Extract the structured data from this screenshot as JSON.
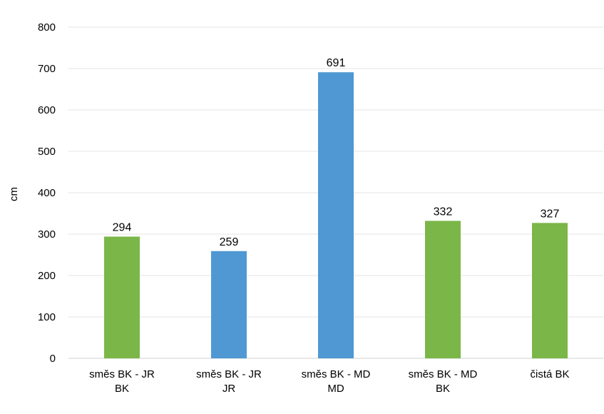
{
  "chart_data": {
    "type": "bar",
    "title": "",
    "xlabel": "",
    "ylabel": "cm",
    "ylim": [
      0,
      800
    ],
    "yticks": [
      0,
      100,
      200,
      300,
      400,
      500,
      600,
      700,
      800
    ],
    "grid": true,
    "legend": "none",
    "categories": [
      [
        "směs BK - JR",
        "BK"
      ],
      [
        "směs BK - JR",
        "JR"
      ],
      [
        "směs BK - MD",
        "MD"
      ],
      [
        "směs BK - MD",
        "BK"
      ],
      [
        "čistá BK"
      ]
    ],
    "values": [
      294,
      259,
      691,
      332,
      327
    ],
    "bar_colors": [
      "#7ab648",
      "#4f98d3",
      "#4f98d3",
      "#7ab648",
      "#7ab648"
    ],
    "data_labels": [
      "294",
      "259",
      "691",
      "332",
      "327"
    ]
  }
}
